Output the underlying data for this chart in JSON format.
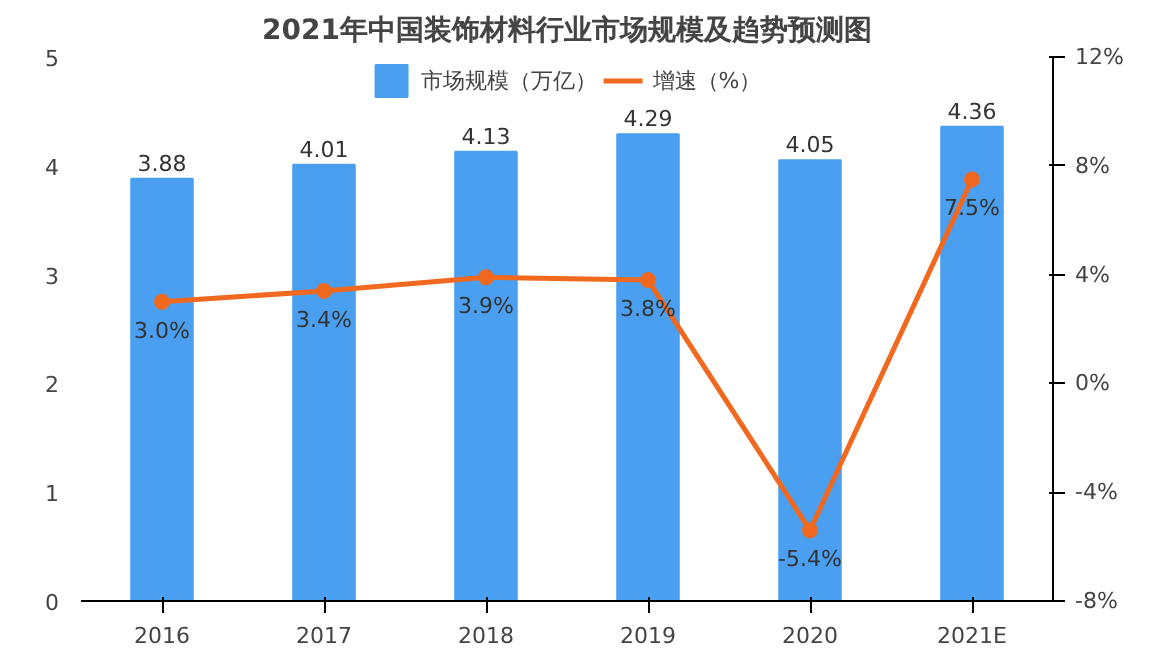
{
  "chart_data": {
    "type": "bar",
    "title": "2021年中国装饰材料行业市场规模及趋势预测图",
    "categories": [
      "2016",
      "2017",
      "2018",
      "2019",
      "2020",
      "2021E"
    ],
    "series": [
      {
        "name": "市场规模（万亿）",
        "color": "#4a9ff0",
        "values": [
          3.88,
          4.01,
          4.13,
          4.29,
          4.05,
          4.36
        ],
        "value_labels": [
          "3.88",
          "4.01",
          "4.13",
          "4.29",
          "4.05",
          "4.36"
        ]
      },
      {
        "name": "增速（%）",
        "type": "line",
        "axis": "y2",
        "color": "#f0691e",
        "values": [
          3.0,
          3.4,
          3.9,
          3.8,
          -5.4,
          7.5
        ],
        "value_labels": [
          "3.0%",
          "3.4%",
          "3.9%",
          "3.8%",
          "-5.4%",
          "7.5%"
        ]
      }
    ],
    "ylim": [
      0,
      5
    ],
    "yticks": [
      0,
      1,
      2,
      3,
      4,
      5
    ],
    "y2lim": [
      -8,
      12
    ],
    "y2ticks": [
      {
        "value": -8,
        "label": "-8%"
      },
      {
        "value": -4,
        "label": "-4%"
      },
      {
        "value": 0,
        "label": "0%"
      },
      {
        "value": 4,
        "label": "4%"
      },
      {
        "value": 8,
        "label": "8%"
      },
      {
        "value": 12,
        "label": "12%"
      }
    ],
    "legend": "top",
    "grid": false,
    "marker": "circle",
    "line_style": "solid"
  }
}
